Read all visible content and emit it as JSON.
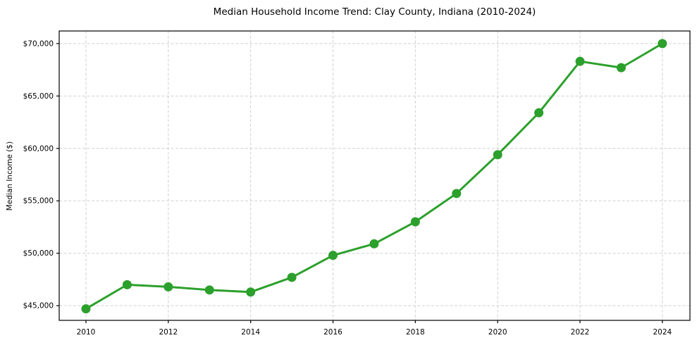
{
  "chart_data": {
    "type": "line",
    "title": "Median Household Income Trend: Clay County, Indiana (2010-2024)",
    "xlabel": "",
    "ylabel": "Median Income ($)",
    "series_name": "Median Household Income",
    "x": [
      2010,
      2011,
      2012,
      2013,
      2014,
      2015,
      2016,
      2017,
      2018,
      2019,
      2020,
      2021,
      2022,
      2023,
      2024
    ],
    "y": [
      44700,
      47000,
      46800,
      46500,
      46300,
      47700,
      49800,
      50900,
      53000,
      55700,
      59400,
      63400,
      68300,
      67700,
      70000
    ],
    "x_ticks": [
      2010,
      2012,
      2014,
      2016,
      2018,
      2020,
      2022,
      2024
    ],
    "x_tick_labels": [
      "2010",
      "2012",
      "2014",
      "2016",
      "2018",
      "2020",
      "2022",
      "2024"
    ],
    "y_ticks": [
      45000,
      50000,
      55000,
      60000,
      65000,
      70000
    ],
    "y_tick_labels": [
      "$45,000",
      "$50,000",
      "$55,000",
      "$60,000",
      "$65,000",
      "$70,000"
    ],
    "xlim": [
      2009.35,
      2024.67
    ],
    "ylim": [
      43600,
      71200
    ],
    "grid": true,
    "legend": false,
    "marker": "circle",
    "marker_radius": 6.5,
    "line_color": "#2ca02c",
    "grid_color": "#d0d0d0",
    "axis_color": "#000000",
    "background": "#ffffff"
  }
}
